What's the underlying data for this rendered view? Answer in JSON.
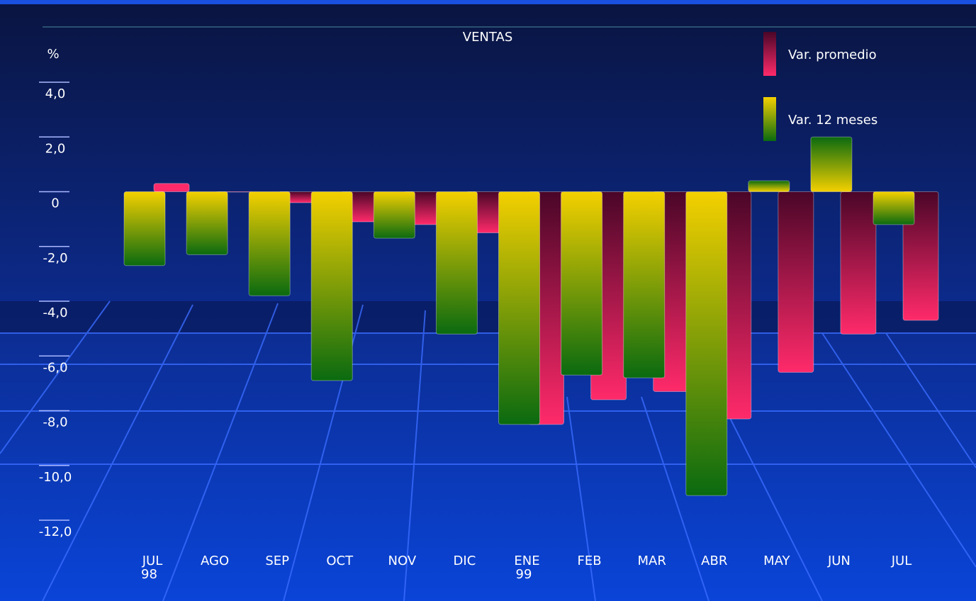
{
  "chart_data": {
    "type": "bar",
    "title": "VENTAS",
    "y_label": "%",
    "categories": [
      "JUL 98",
      "AGO",
      "SEP",
      "OCT",
      "NOV",
      "DIC",
      "ENE 99",
      "FEB",
      "MAR",
      "ABR",
      "MAY",
      "JUN",
      "JUL"
    ],
    "series": [
      {
        "name": "Var. promedio",
        "color": "#ff2a6a",
        "values": [
          0.3,
          0,
          -0.4,
          -1.1,
          -1.2,
          -1.5,
          -8.5,
          -7.6,
          -7.3,
          -8.3,
          -6.6,
          -5.2,
          -4.7
        ]
      },
      {
        "name": "Var. 12 meses",
        "color": "#0a6a10",
        "values": [
          -2.7,
          -2.3,
          -3.8,
          -6.9,
          -1.7,
          -5.2,
          -8.5,
          -6.7,
          -6.8,
          -11.1,
          0.4,
          2.0,
          -1.2
        ]
      }
    ],
    "ylim": [
      -12,
      4
    ],
    "yticks": [
      {
        "value": 4,
        "label": "4,0"
      },
      {
        "value": 2,
        "label": "2,0"
      },
      0,
      {
        "value": -2,
        "label": "-2,0"
      },
      {
        "value": -4,
        "label": "-4,0"
      },
      {
        "value": -6,
        "label": "-6,0"
      },
      {
        "value": -8,
        "label": "-8,0"
      },
      {
        "value": -10,
        "label": "-10,0"
      },
      {
        "value": -12,
        "label": "-12,0"
      }
    ]
  }
}
